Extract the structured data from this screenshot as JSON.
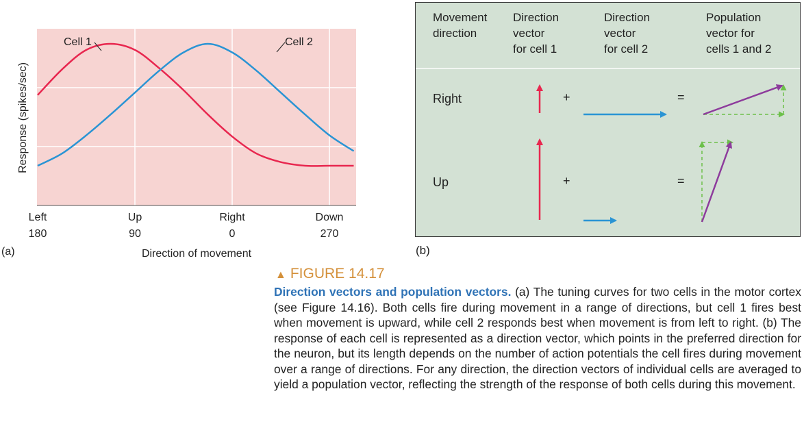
{
  "panel_a": {
    "label": "(a)",
    "chart_data": {
      "type": "line",
      "ylabel": "Response (spikes/sec)",
      "xlabel": "Direction of movement",
      "x_ticks": [
        {
          "name": "Left",
          "deg": "180"
        },
        {
          "name": "Up",
          "deg": "90"
        },
        {
          "name": "Right",
          "deg": "0"
        },
        {
          "name": "Down",
          "deg": "270"
        }
      ],
      "x": [
        0,
        0.25,
        0.5,
        0.75,
        1.0,
        1.25,
        1.5,
        1.75,
        2.0,
        2.25,
        2.5,
        2.75,
        3.0,
        3.25
      ],
      "series": [
        {
          "name": "Cell 1",
          "color": "#e8274f",
          "values": [
            0.58,
            0.79,
            0.95,
            1.0,
            0.95,
            0.8,
            0.62,
            0.42,
            0.24,
            0.1,
            0.03,
            0.0,
            0.0,
            0.0
          ]
        },
        {
          "name": "Cell 2",
          "color": "#2a94d4",
          "values": [
            0.0,
            0.1,
            0.25,
            0.42,
            0.6,
            0.78,
            0.93,
            1.0,
            0.93,
            0.78,
            0.6,
            0.42,
            0.25,
            0.12
          ]
        }
      ],
      "annotations": [
        "Cell 1",
        "Cell 2"
      ],
      "background": "#f7d4d2",
      "grid": true
    }
  },
  "panel_b": {
    "label": "(b)",
    "headers": [
      [
        "Movement",
        "direction"
      ],
      [
        "Direction",
        "vector",
        "for cell 1"
      ],
      [
        "Direction",
        "vector",
        "for cell 2"
      ],
      [
        "Population",
        "vector for",
        "cells 1 and 2"
      ]
    ],
    "rows": [
      {
        "label": "Right",
        "plus": "+",
        "equals": "=",
        "cell1_length": 0.3,
        "cell2_length": 1.0
      },
      {
        "label": "Up",
        "plus": "+",
        "equals": "=",
        "cell1_length": 1.0,
        "cell2_length": 0.4
      }
    ],
    "colors": {
      "cell1": "#e8274f",
      "cell2": "#2a94d4",
      "population": "#8d3b9c",
      "component": "#6cc04a"
    }
  },
  "figure": {
    "label": "FIGURE 14.17",
    "title": "Direction vectors and population vectors.",
    "caption_a": "(a) The tuning curves for two cells in the motor cortex (see Figure 14.16). Both cells fire during movement in a range of directions, but cell 1 fires best when movement is upward, while cell 2 responds best when movement is from left to right.",
    "caption_b": "(b) The response of each cell is represented as a direction vector, which points in the preferred direction for the neuron, but its length depends on the number of action potentials the cell fires during movement over a range of directions. For any direction, the direction vectors of individual cells are averaged to yield a population vector, reflecting the strength of the response of both cells during this movement."
  }
}
